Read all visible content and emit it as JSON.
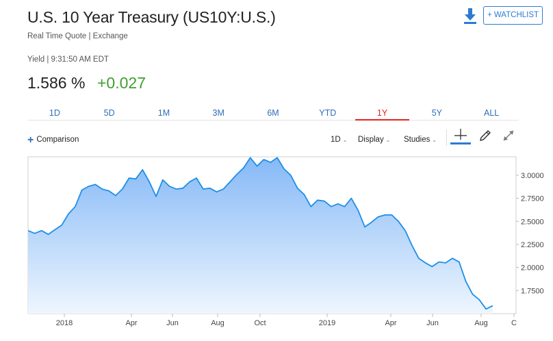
{
  "header": {
    "title": "U.S. 10 Year Treasury (US10Y:U.S.)",
    "subtitle": "Real Time Quote | Exchange",
    "yield_time": "Yield | 9:31:50 AM EDT",
    "price": "1.586 %",
    "change": "+0.027",
    "change_color": "#3f9e30",
    "download_icon": "download-icon",
    "watchlist_label": "+ WATCHLIST"
  },
  "tabs": [
    {
      "label": "1D",
      "active": false
    },
    {
      "label": "5D",
      "active": false
    },
    {
      "label": "1M",
      "active": false
    },
    {
      "label": "3M",
      "active": false
    },
    {
      "label": "6M",
      "active": false
    },
    {
      "label": "YTD",
      "active": false
    },
    {
      "label": "1Y",
      "active": true
    },
    {
      "label": "5Y",
      "active": false
    },
    {
      "label": "ALL",
      "active": false
    }
  ],
  "toolbar": {
    "comparison_label": "Comparison",
    "interval_label": "1D",
    "display_label": "Display",
    "studies_label": "Studies",
    "crosshair_icon": "crosshair-icon",
    "pencil_icon": "pencil-icon",
    "expand_icon": "expand-icon"
  },
  "colors": {
    "accent": "#2c7bd3",
    "active_tab": "#e62222",
    "line": "#1e8fe6",
    "fill_top": "#86b9f7",
    "fill_bottom": "#eef6fe"
  },
  "chart_data": {
    "type": "area",
    "x_ticks": [
      "2018",
      "Apr",
      "Jun",
      "Aug",
      "Oct",
      "2019",
      "Apr",
      "Jun",
      "Aug",
      "C"
    ],
    "y_ticks": [
      "3.0000",
      "2.7500",
      "2.5000",
      "2.2500",
      "2.0000",
      "1.7500"
    ],
    "ylim": [
      1.5,
      3.2
    ],
    "grid": false,
    "series": [
      {
        "points": [
          [
            "Nov",
            2.4
          ],
          [
            "Dec",
            2.37
          ],
          [
            "Dec",
            2.4
          ],
          [
            "Dec",
            2.36
          ],
          [
            "Dec",
            2.41
          ],
          [
            "2018",
            2.46
          ],
          [
            "Jan",
            2.58
          ],
          [
            "Jan",
            2.66
          ],
          [
            "Feb",
            2.84
          ],
          [
            "Feb",
            2.88
          ],
          [
            "Mar",
            2.9
          ],
          [
            "Mar",
            2.85
          ],
          [
            "Mar",
            2.83
          ],
          [
            "Apr",
            2.78
          ],
          [
            "Apr",
            2.85
          ],
          [
            "Apr",
            2.97
          ],
          [
            "May",
            2.96
          ],
          [
            "May",
            3.06
          ],
          [
            "May",
            2.93
          ],
          [
            "Jun",
            2.77
          ],
          [
            "Jun",
            2.95
          ],
          [
            "Jun",
            2.88
          ],
          [
            "Jul",
            2.85
          ],
          [
            "Jul",
            2.86
          ],
          [
            "Jul",
            2.93
          ],
          [
            "Aug",
            2.97
          ],
          [
            "Aug",
            2.85
          ],
          [
            "Aug",
            2.86
          ],
          [
            "Sep",
            2.82
          ],
          [
            "Sep",
            2.85
          ],
          [
            "Sep",
            2.93
          ],
          [
            "Sep",
            3.01
          ],
          [
            "Oct",
            3.08
          ],
          [
            "Oct",
            3.19
          ],
          [
            "Oct",
            3.1
          ],
          [
            "Oct",
            3.17
          ],
          [
            "Nov",
            3.14
          ],
          [
            "Nov",
            3.19
          ],
          [
            "Nov",
            3.07
          ],
          [
            "Dec",
            3.0
          ],
          [
            "Dec",
            2.86
          ],
          [
            "Dec",
            2.79
          ],
          [
            "2019",
            2.66
          ],
          [
            "Jan",
            2.73
          ],
          [
            "Jan",
            2.72
          ],
          [
            "Feb",
            2.66
          ],
          [
            "Feb",
            2.69
          ],
          [
            "Feb",
            2.66
          ],
          [
            "Mar",
            2.75
          ],
          [
            "Mar",
            2.62
          ],
          [
            "Mar",
            2.44
          ],
          [
            "Apr",
            2.49
          ],
          [
            "Apr",
            2.55
          ],
          [
            "Apr",
            2.57
          ],
          [
            "May",
            2.57
          ],
          [
            "May",
            2.5
          ],
          [
            "May",
            2.4
          ],
          [
            "Jun",
            2.24
          ],
          [
            "Jun",
            2.1
          ],
          [
            "Jun",
            2.05
          ],
          [
            "Jul",
            2.01
          ],
          [
            "Jul",
            2.06
          ],
          [
            "Jul",
            2.05
          ],
          [
            "Jul",
            2.1
          ],
          [
            "Aug",
            2.06
          ],
          [
            "Aug",
            1.85
          ],
          [
            "Aug",
            1.71
          ],
          [
            "Aug",
            1.65
          ],
          [
            "Aug",
            1.55
          ],
          [
            "Aug",
            1.586
          ]
        ]
      }
    ]
  }
}
